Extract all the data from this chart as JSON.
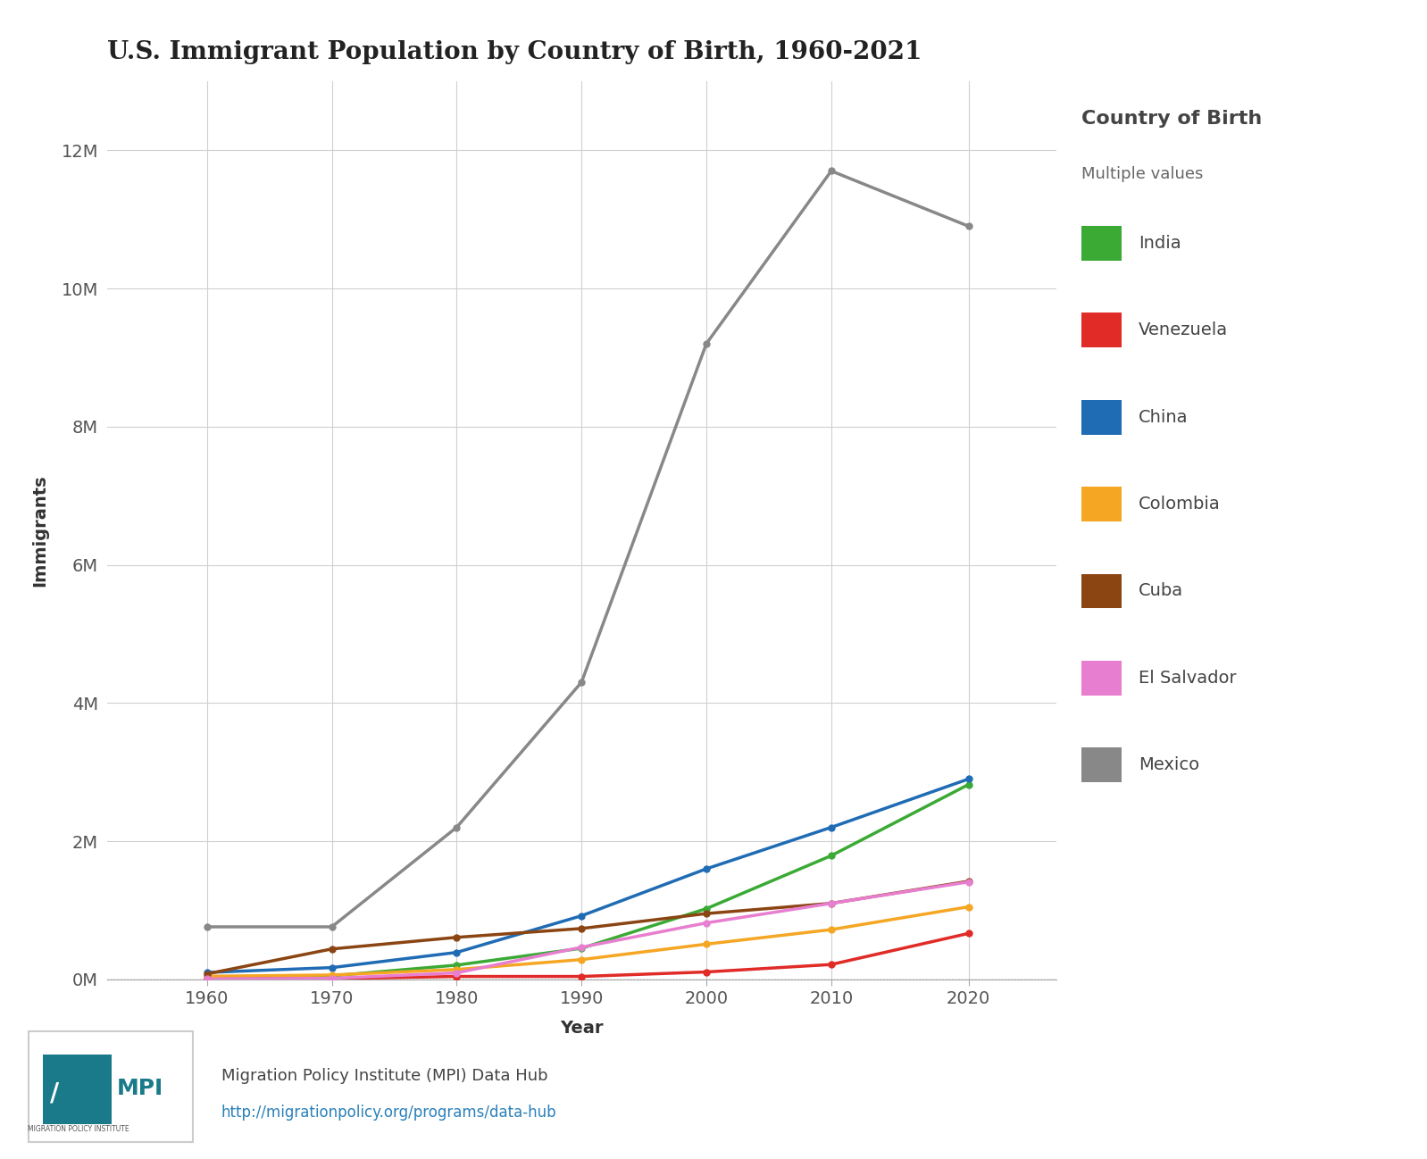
{
  "title": "U.S. Immigrant Population by Country of Birth, 1960-2021",
  "xlabel": "Year",
  "ylabel": "Immigrants",
  "legend_title": "Country of Birth",
  "legend_subtitle": "Multiple values",
  "years": [
    1960,
    1970,
    1980,
    1990,
    2000,
    2010,
    2021
  ],
  "xtick_labels": [
    "1960",
    "1970",
    "1980",
    "1990",
    "2000",
    "2010",
    "2020"
  ],
  "series": [
    {
      "label": "India",
      "color": "#3aaa35",
      "values": [
        12000,
        51000,
        206000,
        450000,
        1023000,
        1790000,
        2820000
      ]
    },
    {
      "label": "Venezuela",
      "color": "#e02b27",
      "values": [
        6000,
        11000,
        42000,
        42000,
        107000,
        215000,
        665000
      ]
    },
    {
      "label": "China",
      "color": "#1f6cb5",
      "values": [
        100000,
        170000,
        390000,
        920000,
        1600000,
        2200000,
        2900000
      ]
    },
    {
      "label": "Colombia",
      "color": "#f5a623",
      "values": [
        45000,
        63000,
        143000,
        286000,
        510000,
        720000,
        1050000
      ]
    },
    {
      "label": "Cuba",
      "color": "#8b4513",
      "values": [
        79000,
        440000,
        608000,
        736000,
        952000,
        1100000,
        1420000
      ]
    },
    {
      "label": "El Salvador",
      "color": "#e87ed0",
      "values": [
        6000,
        15000,
        94000,
        465000,
        817000,
        1100000,
        1410000
      ]
    },
    {
      "label": "Mexico",
      "color": "#888888",
      "values": [
        760000,
        760000,
        2200000,
        4300000,
        9200000,
        11700000,
        10900000
      ]
    }
  ],
  "ylim": [
    0,
    13000000
  ],
  "yticks": [
    0,
    2000000,
    4000000,
    6000000,
    8000000,
    10000000,
    12000000
  ],
  "ytick_labels": [
    "0M",
    "2M",
    "4M",
    "6M",
    "8M",
    "10M",
    "12M"
  ],
  "bg_color": "#ffffff",
  "plot_bg_color": "#ffffff",
  "footer_text": "Migration Policy Institute (MPI) Data Hub",
  "footer_url": "http://migrationpolicy.org/programs/data-hub",
  "title_fontsize": 20,
  "axis_label_fontsize": 14,
  "tick_fontsize": 14,
  "legend_title_fontsize": 16,
  "legend_subtitle_fontsize": 13,
  "legend_entry_fontsize": 14
}
